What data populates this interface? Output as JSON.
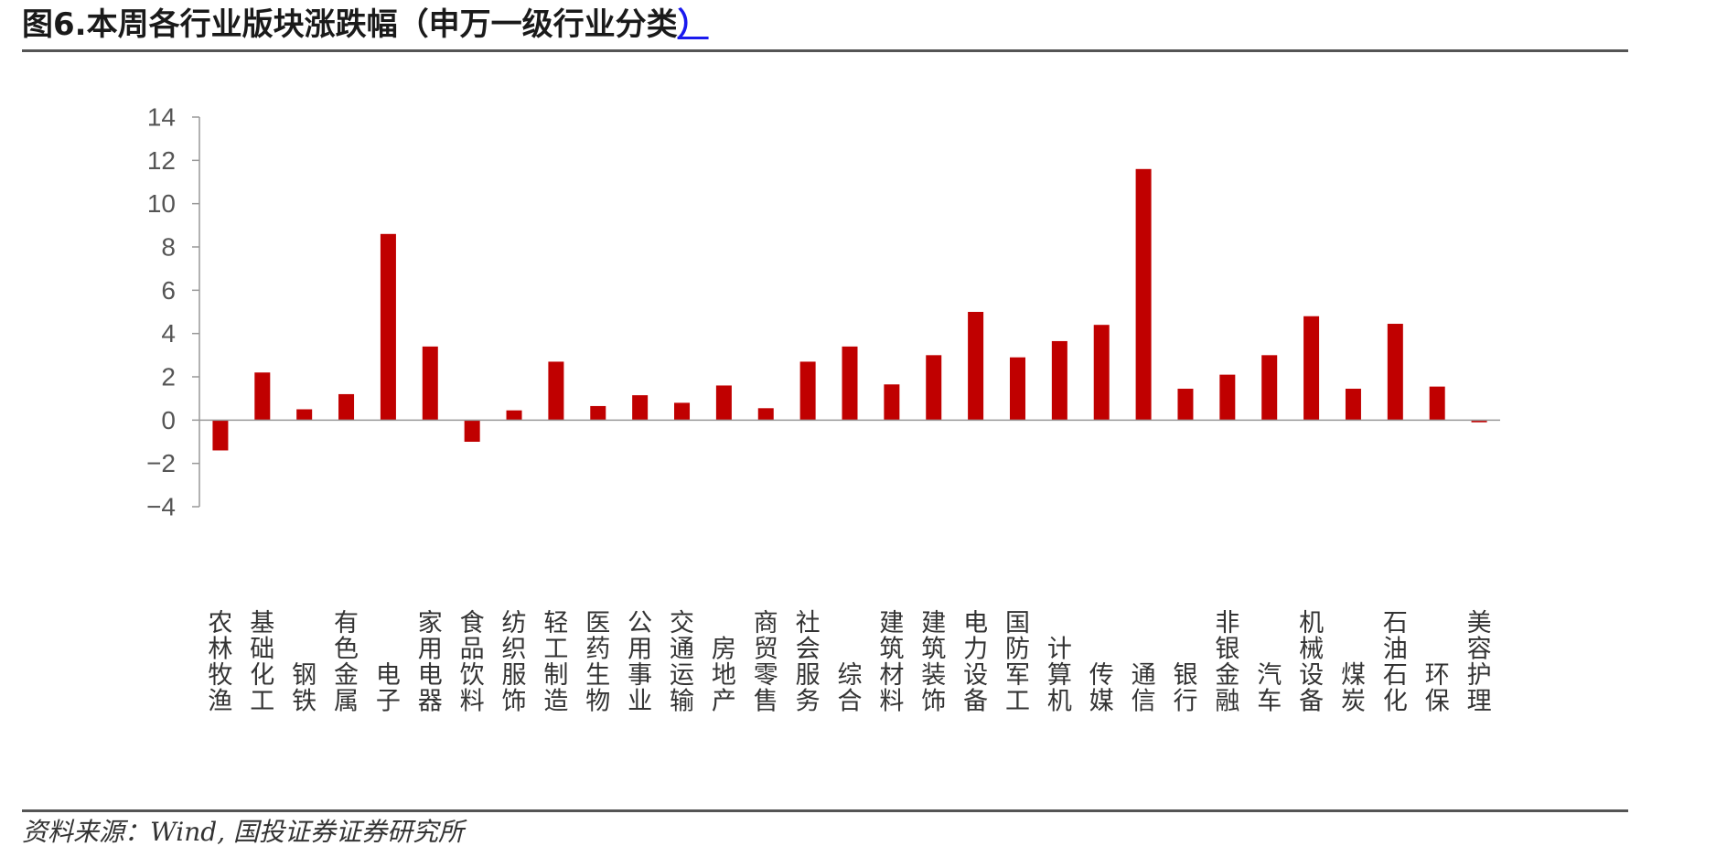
{
  "header": {
    "title_main": "图6.本周各行业版块涨跌幅（申万一级行业分类",
    "title_link": "）"
  },
  "footer": {
    "source": "资料来源：Wind, 国投证券证券研究所"
  },
  "colors": {
    "bar": "#C00000",
    "axis": "#999999",
    "tick_text": "#555555",
    "category_text": "#333333"
  },
  "chart_data": {
    "type": "bar",
    "title": "图6.本周各行业版块涨跌幅（申万一级行业分类）",
    "xlabel": "",
    "ylabel": "",
    "ylim": [
      -4,
      14
    ],
    "yticks": [
      14,
      12,
      10,
      8,
      6,
      4,
      2,
      0,
      -2,
      -4
    ],
    "ytick_labels": [
      "14",
      "12",
      "10",
      "8",
      "6",
      "4",
      "2",
      "0",
      "−2",
      "−4"
    ],
    "grid": false,
    "legend": "none",
    "categories": [
      "农林牧渔",
      "基础化工",
      "钢铁",
      "有色金属",
      "电子",
      "家用电器",
      "食品饮料",
      "纺织服饰",
      "轻工制造",
      "医药生物",
      "公用事业",
      "交通运输",
      "房地产",
      "商贸零售",
      "社会服务",
      "综合",
      "建筑材料",
      "建筑装饰",
      "电力设备",
      "国防军工",
      "计算机",
      "传媒",
      "通信",
      "银行",
      "非银金融",
      "汽车",
      "机械设备",
      "煤炭",
      "石油石化",
      "环保",
      "美容护理"
    ],
    "values": [
      -1.4,
      2.2,
      0.5,
      1.2,
      8.6,
      3.4,
      -1.0,
      0.45,
      2.7,
      0.65,
      1.15,
      0.8,
      1.6,
      0.55,
      2.7,
      3.4,
      1.65,
      3.0,
      5.0,
      2.9,
      3.65,
      4.4,
      11.6,
      1.45,
      2.1,
      3.0,
      4.8,
      1.45,
      4.45,
      1.55,
      -0.1
    ]
  }
}
